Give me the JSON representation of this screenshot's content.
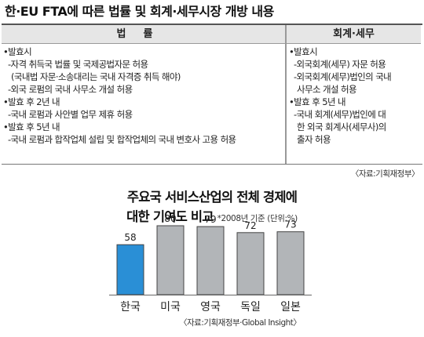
{
  "headline": "한·EU FTA에 따른 법률 및 회계·세무시장 개방 내용",
  "table": {
    "header_left": "법률",
    "header_right": "회계·세무",
    "left_lines": [
      {
        "kind": "head",
        "text": "•발효시"
      },
      {
        "kind": "sub1",
        "text": "-자격 취득국 법률 및 국제공법자문 허용"
      },
      {
        "kind": "sub2",
        "text": "(국내법 자문·소송대리는 국내 자격증 취득 해야)"
      },
      {
        "kind": "sub1",
        "text": "-외국 로펌의 국내 사무소 개설 허용"
      },
      {
        "kind": "head",
        "text": "•발효 후 2년 내"
      },
      {
        "kind": "sub1",
        "text": "-국내 로펌과 사안별 업무 제휴 허용"
      },
      {
        "kind": "head",
        "text": "•발효 후 5년 내"
      },
      {
        "kind": "sub1",
        "text": "-국내 로펌과 합작업체 설립 및 합작업체의 국내 변호사 고용 허용"
      }
    ],
    "right_lines": [
      {
        "kind": "head",
        "text": "•발효시"
      },
      {
        "kind": "sub1",
        "text": "-외국회계(세무) 자문 허용"
      },
      {
        "kind": "sub1",
        "text": "-외국회계(세무)법인의 국내"
      },
      {
        "kind": "sub3",
        "text": "사무소 개설 허용"
      },
      {
        "kind": "head",
        "text": "•발효 후 5년 내"
      },
      {
        "kind": "sub1",
        "text": "-국내 회계(세무)법인에 대"
      },
      {
        "kind": "sub3",
        "text": "한 외국 회계사(세무사)의"
      },
      {
        "kind": "sub3",
        "text": "출자 허용"
      }
    ]
  },
  "source_table": "〈자료:기획재정부〉",
  "chart_title_line1": "주요국 서비스산업의 전체 경제에",
  "chart_title_line2": "대한 기여도 비교",
  "chart_note": "*2008년 기준 (단위:%)",
  "source_chart": "〈자료:기획재정부·Global Insight〉",
  "colors": {
    "highlight_bar": "#2a8fd6",
    "other_bars": "#b2b5b8",
    "bar_outline": "#444444"
  },
  "chart_data": {
    "type": "bar",
    "title": "주요국 서비스산업의 전체 경제에 대한 기여도 비교",
    "note": "*2008년 기준 (단위:%)",
    "categories": [
      "한국",
      "미국",
      "영국",
      "독일",
      "일본"
    ],
    "values": [
      58,
      80,
      79,
      72,
      73
    ],
    "highlight": "한국",
    "ylim": [
      0,
      80
    ],
    "grid": false,
    "legend": "none"
  }
}
